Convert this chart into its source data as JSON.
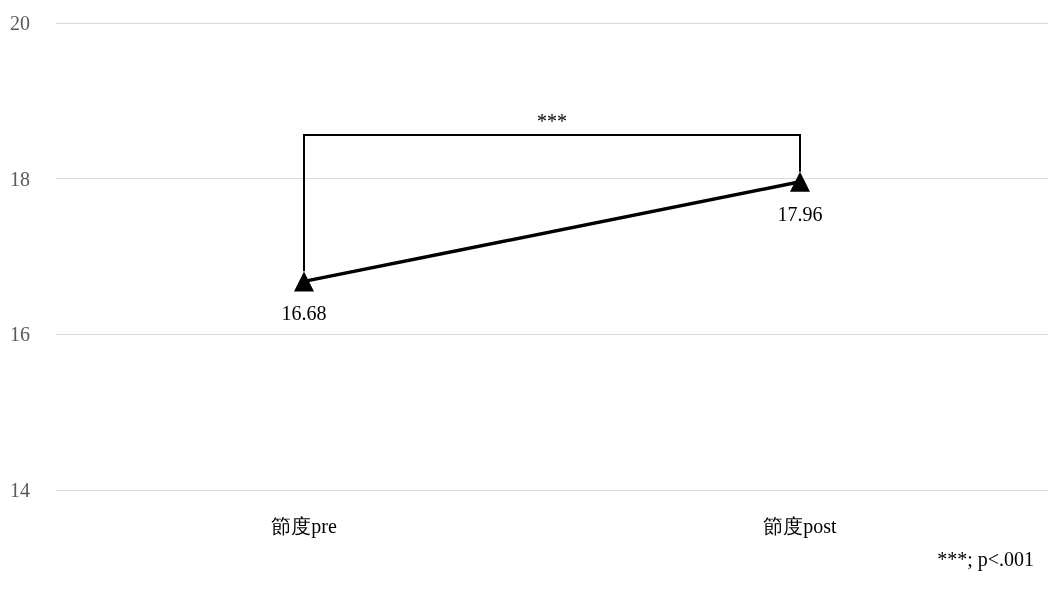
{
  "chart_data": {
    "type": "line",
    "categories": [
      "節度pre",
      "節度post"
    ],
    "series": [
      {
        "color": "#000000",
        "values": [
          16.68,
          17.96
        ]
      }
    ],
    "ylim": [
      14,
      20
    ],
    "yticks": [
      14,
      16,
      18,
      20
    ],
    "grid": "y",
    "marker": "triangle",
    "line_style": "solid",
    "data_labels": true,
    "annotations": [
      "***",
      "***; p<.001"
    ]
  }
}
